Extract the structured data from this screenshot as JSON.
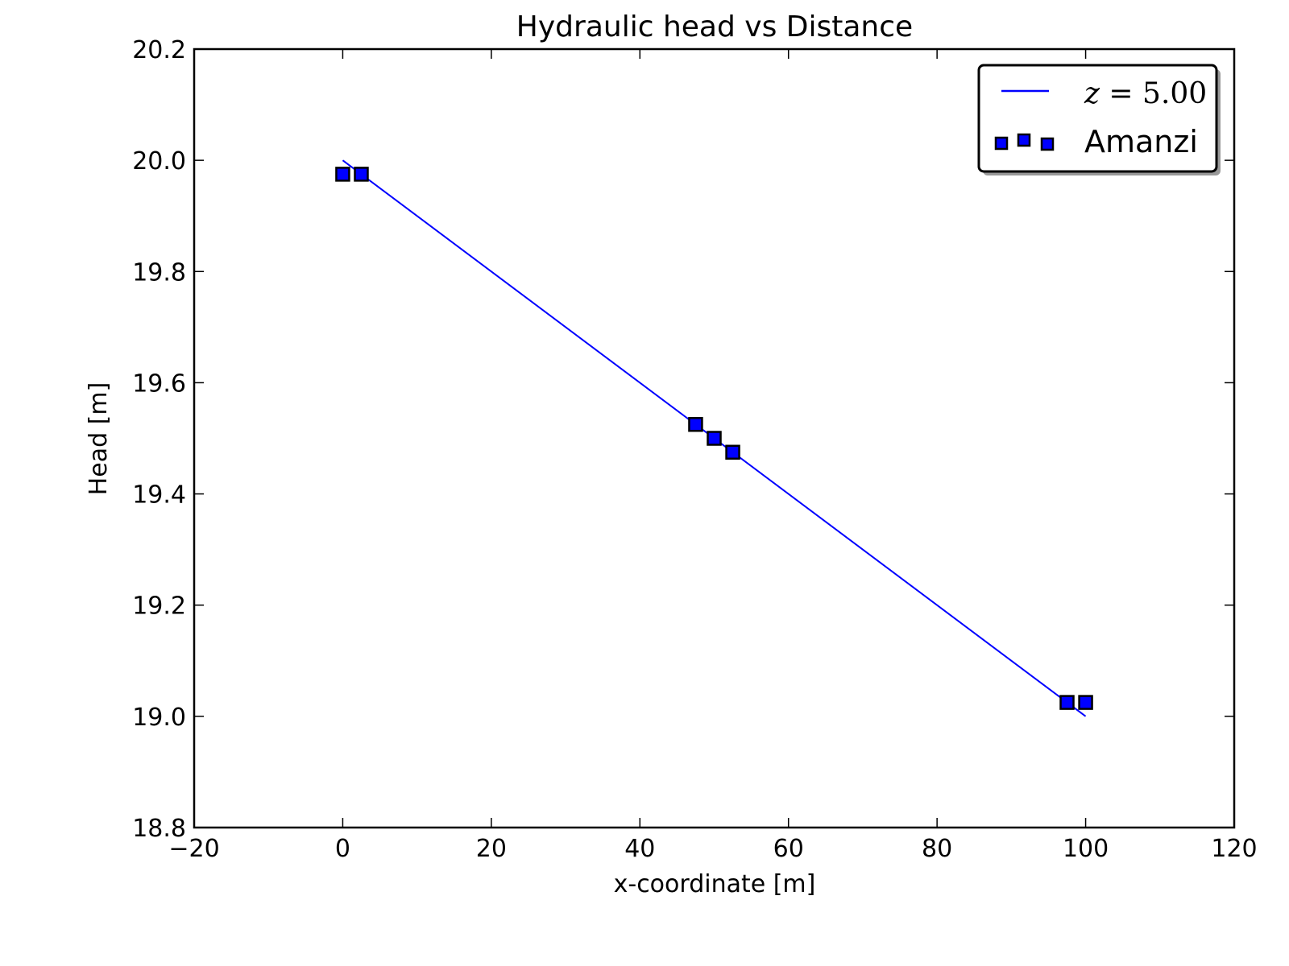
{
  "chart_data": {
    "type": "scatter",
    "title": "Hydraulic head vs Distance",
    "xlabel": "x-coordinate [m]",
    "ylabel": "Head [m]",
    "xlim": [
      -20,
      120
    ],
    "ylim": [
      18.8,
      20.2
    ],
    "xticks": [
      -20,
      0,
      20,
      40,
      60,
      80,
      100,
      120
    ],
    "xtick_labels": [
      "−20",
      "0",
      "20",
      "40",
      "60",
      "80",
      "100",
      "120"
    ],
    "yticks": [
      18.8,
      19.0,
      19.2,
      19.4,
      19.6,
      19.8,
      20.0,
      20.2
    ],
    "ytick_labels": [
      "18.8",
      "19.0",
      "19.2",
      "19.4",
      "19.6",
      "19.8",
      "20.0",
      "20.2"
    ],
    "grid": false,
    "legend_position": "top-right",
    "series": [
      {
        "name_var": "z",
        "name_eq": "=",
        "name_value": "5.00",
        "kind": "line",
        "color": "#0000ff",
        "x": [
          0,
          100
        ],
        "y": [
          20.0,
          19.0
        ]
      },
      {
        "name": "Amanzi",
        "kind": "marker",
        "marker": "square",
        "color": "#0000ff",
        "edge_color": "#000000",
        "x": [
          0,
          2.5,
          47.5,
          50,
          52.5,
          97.5,
          100
        ],
        "y": [
          19.975,
          19.975,
          19.525,
          19.5,
          19.475,
          19.025,
          19.025
        ]
      }
    ]
  }
}
